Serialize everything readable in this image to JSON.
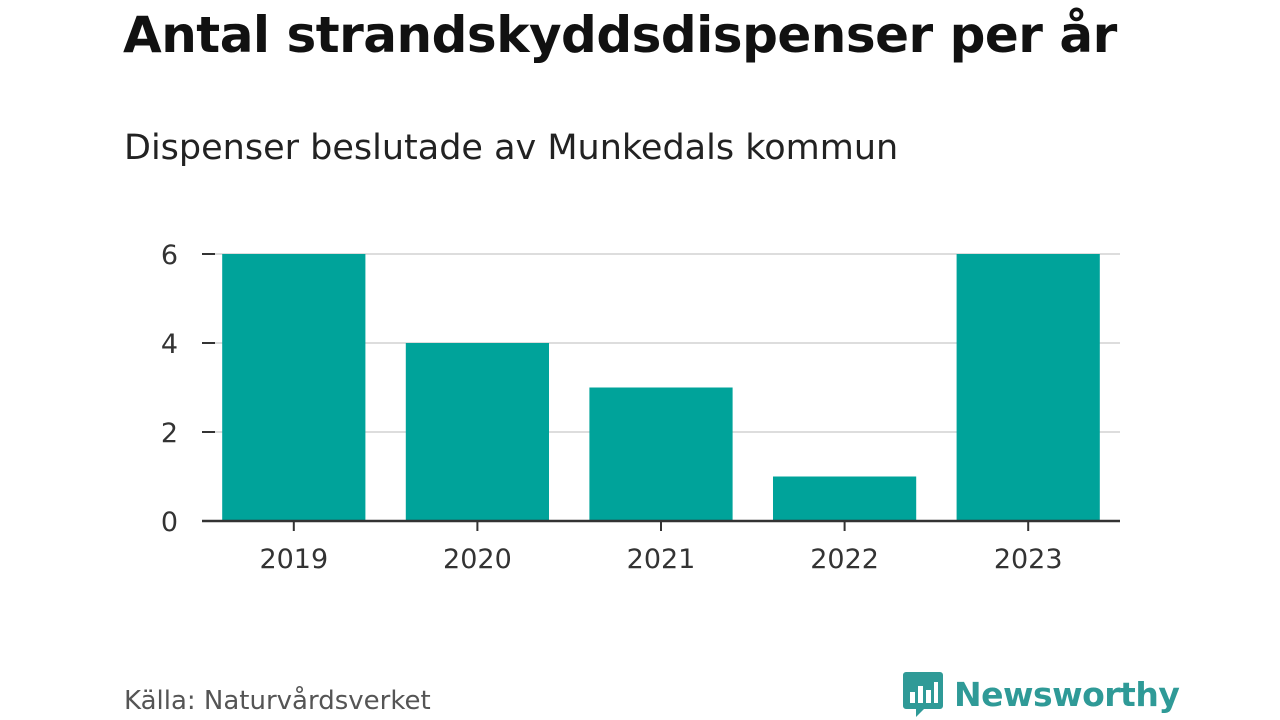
{
  "header": {
    "title": "Antal strandskyddsdispenser per år",
    "subtitle": "Dispenser beslutade av Munkedals kommun"
  },
  "footer": {
    "source": "Källa: Naturvårdsverket",
    "brand": "Newsworthy"
  },
  "colors": {
    "bar": "#00a39a",
    "grid": "#dddddd",
    "axis": "#333333",
    "brand": "#2f9a97"
  },
  "chart_data": {
    "type": "bar",
    "categories": [
      "2019",
      "2020",
      "2021",
      "2022",
      "2023"
    ],
    "values": [
      6,
      4,
      3,
      1,
      6
    ],
    "yticks": [
      0,
      2,
      4,
      6
    ],
    "ylim": [
      0,
      6
    ],
    "grid": true,
    "xlabel": "",
    "ylabel": ""
  }
}
